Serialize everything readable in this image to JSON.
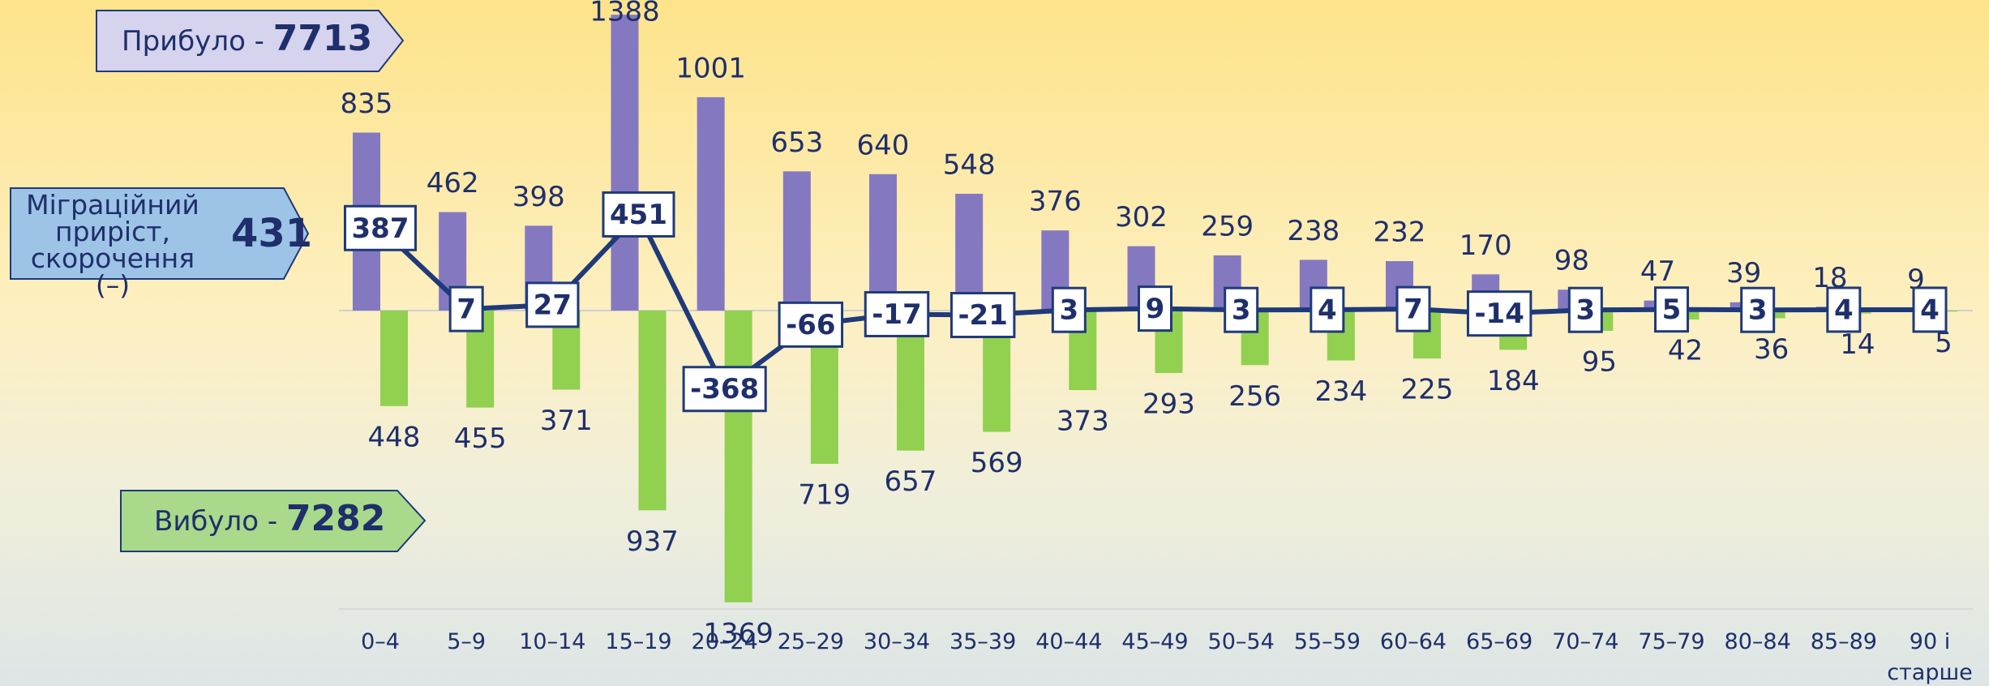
{
  "chart_data": {
    "type": "bar",
    "categories": [
      "0–4",
      "5–9",
      "10–14",
      "15–19",
      "20–24",
      "25–29",
      "30–34",
      "35–39",
      "40–44",
      "45–49",
      "50–54",
      "55–59",
      "60–64",
      "65–69",
      "70–74",
      "75–79",
      "80–84",
      "85–89",
      "90 і старше"
    ],
    "ylim": [
      -1400,
      1400
    ],
    "series": [
      {
        "name": "Прибуло -",
        "total": 7713,
        "type": "bar",
        "color": "#8479c0",
        "values": [
          835,
          462,
          398,
          1388,
          1001,
          653,
          640,
          548,
          376,
          302,
          259,
          238,
          232,
          170,
          98,
          47,
          39,
          18,
          9
        ]
      },
      {
        "name": "Вибуло -",
        "total": 7282,
        "type": "bar",
        "color": "#92d050",
        "values": [
          -448,
          -455,
          -371,
          -937,
          -1369,
          -719,
          -657,
          -569,
          -373,
          -293,
          -256,
          -234,
          -225,
          -184,
          -95,
          -42,
          -36,
          -14,
          -5
        ],
        "value_labels": [
          "448",
          "455",
          "371",
          "937",
          "1369",
          "719",
          "657",
          "569",
          "373",
          "293",
          "256",
          "234",
          "225",
          "184",
          "95",
          "42",
          "36",
          "14",
          "5"
        ]
      },
      {
        "name": "Міграційний приріст, скорочення (–)",
        "total": 431,
        "type": "line",
        "color": "#1f3a7a",
        "values": [
          387,
          7,
          27,
          451,
          -368,
          -66,
          -17,
          -21,
          3,
          9,
          3,
          4,
          7,
          -14,
          3,
          5,
          3,
          4,
          4
        ]
      }
    ]
  }
}
